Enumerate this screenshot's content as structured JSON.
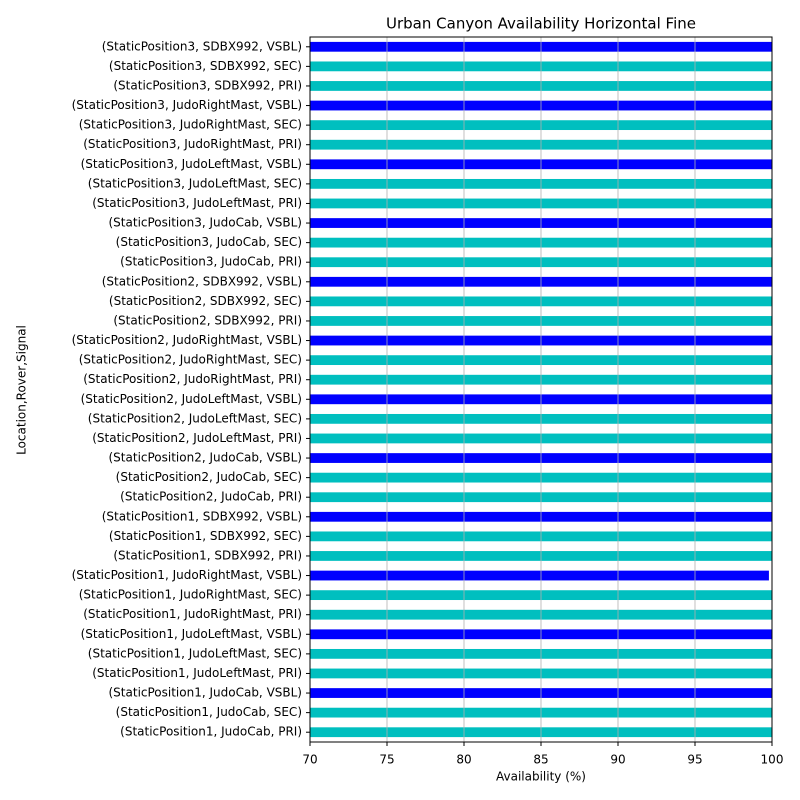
{
  "chart_data": {
    "type": "barh",
    "title": "Urban Canyon Availability Horizontal Fine",
    "xlabel": "Availability (%)",
    "ylabel": "Location,Rover,Signal",
    "categories": [
      "(StaticPosition1, JudoCab, PRI)",
      "(StaticPosition1, JudoCab, SEC)",
      "(StaticPosition1, JudoCab, VSBL)",
      "(StaticPosition1, JudoLeftMast, PRI)",
      "(StaticPosition1, JudoLeftMast, SEC)",
      "(StaticPosition1, JudoLeftMast, VSBL)",
      "(StaticPosition1, JudoRightMast, PRI)",
      "(StaticPosition1, JudoRightMast, SEC)",
      "(StaticPosition1, JudoRightMast, VSBL)",
      "(StaticPosition1, SDBX992, PRI)",
      "(StaticPosition1, SDBX992, SEC)",
      "(StaticPosition1, SDBX992, VSBL)",
      "(StaticPosition2, JudoCab, PRI)",
      "(StaticPosition2, JudoCab, SEC)",
      "(StaticPosition2, JudoCab, VSBL)",
      "(StaticPosition2, JudoLeftMast, PRI)",
      "(StaticPosition2, JudoLeftMast, SEC)",
      "(StaticPosition2, JudoLeftMast, VSBL)",
      "(StaticPosition2, JudoRightMast, PRI)",
      "(StaticPosition2, JudoRightMast, SEC)",
      "(StaticPosition2, JudoRightMast, VSBL)",
      "(StaticPosition2, SDBX992, PRI)",
      "(StaticPosition2, SDBX992, SEC)",
      "(StaticPosition2, SDBX992, VSBL)",
      "(StaticPosition3, JudoCab, PRI)",
      "(StaticPosition3, JudoCab, SEC)",
      "(StaticPosition3, JudoCab, VSBL)",
      "(StaticPosition3, JudoLeftMast, PRI)",
      "(StaticPosition3, JudoLeftMast, SEC)",
      "(StaticPosition3, JudoLeftMast, VSBL)",
      "(StaticPosition3, JudoRightMast, PRI)",
      "(StaticPosition3, JudoRightMast, SEC)",
      "(StaticPosition3, JudoRightMast, VSBL)",
      "(StaticPosition3, SDBX992, PRI)",
      "(StaticPosition3, SDBX992, SEC)",
      "(StaticPosition3, SDBX992, VSBL)"
    ],
    "values": [
      100,
      100,
      100,
      100,
      100,
      100,
      100,
      100,
      99.8,
      100,
      100,
      100,
      100,
      100,
      100,
      100,
      100,
      100,
      100,
      100,
      100,
      100,
      100,
      100,
      100,
      100,
      100,
      100,
      100,
      100,
      100,
      100,
      100,
      100,
      100,
      100
    ],
    "colors": [
      "#00bfbf",
      "#00bfbf",
      "#0000ff",
      "#00bfbf",
      "#00bfbf",
      "#0000ff",
      "#00bfbf",
      "#00bfbf",
      "#0000ff",
      "#00bfbf",
      "#00bfbf",
      "#0000ff",
      "#00bfbf",
      "#00bfbf",
      "#0000ff",
      "#00bfbf",
      "#00bfbf",
      "#0000ff",
      "#00bfbf",
      "#00bfbf",
      "#0000ff",
      "#00bfbf",
      "#00bfbf",
      "#0000ff",
      "#00bfbf",
      "#00bfbf",
      "#0000ff",
      "#00bfbf",
      "#00bfbf",
      "#0000ff",
      "#00bfbf",
      "#00bfbf",
      "#0000ff",
      "#00bfbf",
      "#00bfbf",
      "#0000ff"
    ],
    "xlim": [
      70,
      100
    ],
    "xticks": [
      70,
      75,
      80,
      85,
      90,
      95,
      100
    ],
    "grid": true
  }
}
